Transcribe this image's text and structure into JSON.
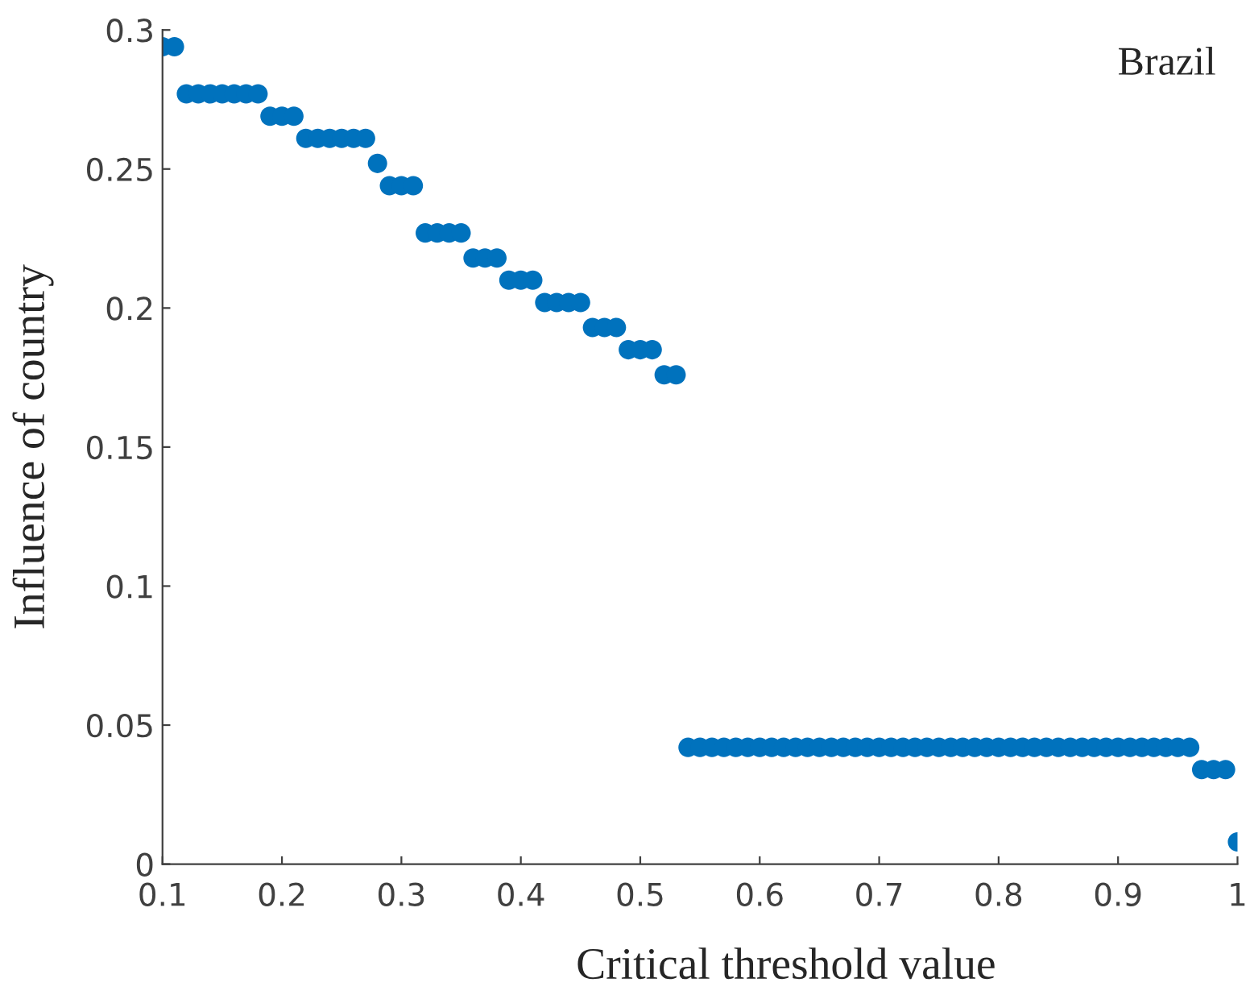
{
  "chart_data": {
    "type": "scatter",
    "xlabel": "Critical threshold value",
    "ylabel": "Influence of country",
    "annotations": [
      "Brazil"
    ],
    "x": [
      0.1,
      0.11,
      0.12,
      0.13,
      0.14,
      0.15,
      0.16,
      0.17,
      0.18,
      0.19,
      0.2,
      0.21,
      0.22,
      0.23,
      0.24,
      0.25,
      0.26,
      0.27,
      0.28,
      0.29,
      0.3,
      0.31,
      0.32,
      0.33,
      0.34,
      0.35,
      0.36,
      0.37,
      0.38,
      0.39,
      0.4,
      0.41,
      0.42,
      0.43,
      0.44,
      0.45,
      0.46,
      0.47,
      0.48,
      0.49,
      0.5,
      0.51,
      0.52,
      0.53,
      0.54,
      0.55,
      0.56,
      0.57,
      0.58,
      0.59,
      0.6,
      0.61,
      0.62,
      0.63,
      0.64,
      0.65,
      0.66,
      0.67,
      0.68,
      0.69,
      0.7,
      0.71,
      0.72,
      0.73,
      0.74,
      0.75,
      0.76,
      0.77,
      0.78,
      0.79,
      0.8,
      0.81,
      0.82,
      0.83,
      0.84,
      0.85,
      0.86,
      0.87,
      0.88,
      0.89,
      0.9,
      0.91,
      0.92,
      0.93,
      0.94,
      0.95,
      0.96,
      0.97,
      0.98,
      0.99,
      1.0
    ],
    "series": [
      {
        "color": "#0072bd",
        "values": [
          0.294,
          0.294,
          0.277,
          0.277,
          0.277,
          0.277,
          0.277,
          0.277,
          0.277,
          0.269,
          0.269,
          0.269,
          0.261,
          0.261,
          0.261,
          0.261,
          0.261,
          0.261,
          0.252,
          0.244,
          0.244,
          0.244,
          0.227,
          0.227,
          0.227,
          0.227,
          0.218,
          0.218,
          0.218,
          0.21,
          0.21,
          0.21,
          0.202,
          0.202,
          0.202,
          0.202,
          0.193,
          0.193,
          0.193,
          0.185,
          0.185,
          0.185,
          0.176,
          0.176,
          0.042,
          0.042,
          0.042,
          0.042,
          0.042,
          0.042,
          0.042,
          0.042,
          0.042,
          0.042,
          0.042,
          0.042,
          0.042,
          0.042,
          0.042,
          0.042,
          0.042,
          0.042,
          0.042,
          0.042,
          0.042,
          0.042,
          0.042,
          0.042,
          0.042,
          0.042,
          0.042,
          0.042,
          0.042,
          0.042,
          0.042,
          0.042,
          0.042,
          0.042,
          0.042,
          0.042,
          0.042,
          0.042,
          0.042,
          0.042,
          0.042,
          0.042,
          0.042,
          0.034,
          0.034,
          0.034,
          0.008
        ]
      }
    ],
    "xlim": [
      0.1,
      1
    ],
    "ylim": [
      0,
      0.3
    ],
    "xticks": [
      0.1,
      0.2,
      0.3,
      0.4,
      0.5,
      0.6,
      0.7,
      0.8,
      0.9,
      {
        "value": 1,
        "label": "1"
      }
    ],
    "yticks": [
      {
        "value": 0,
        "label": "0"
      },
      0.05,
      0.1,
      0.15,
      0.2,
      0.25,
      0.3
    ],
    "marker": "circle",
    "grid": false
  }
}
